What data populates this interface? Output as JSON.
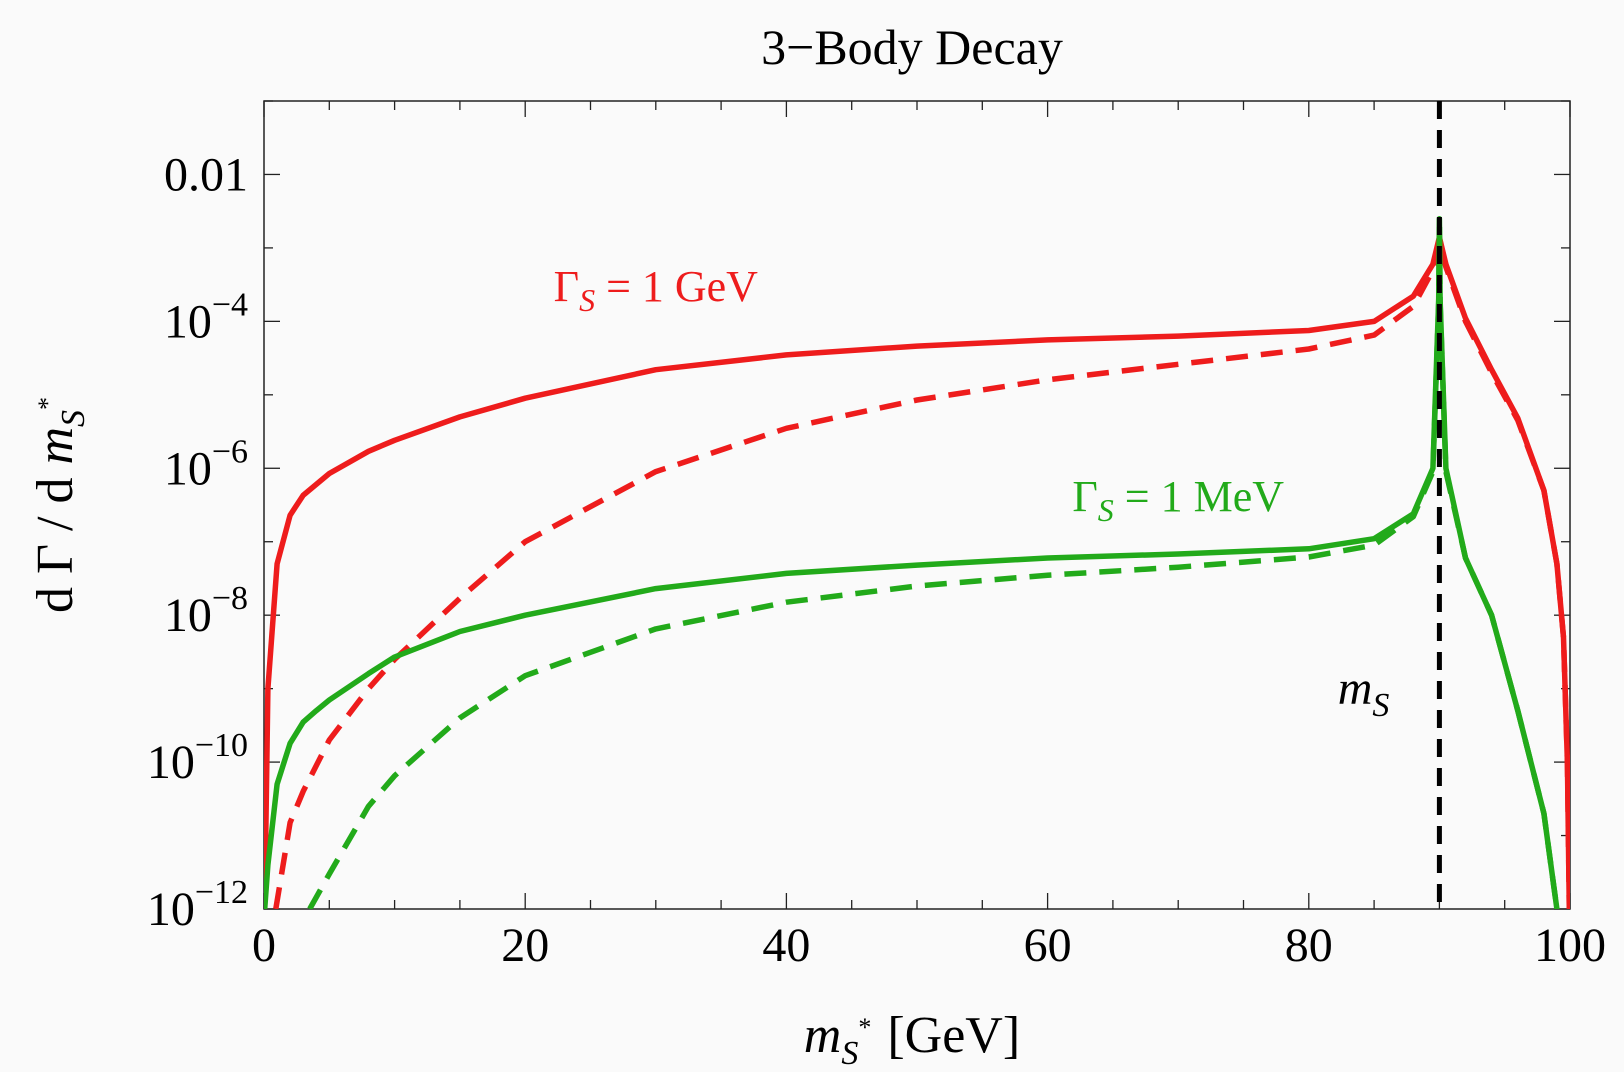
{
  "chart_data": {
    "type": "line",
    "title": "3−Body Decay",
    "xlabel": {
      "var": "m",
      "sub": "S",
      "sup": "*",
      "unit": "[GeV]"
    },
    "ylabel": {
      "pre": "d Γ / d ",
      "var": "m",
      "sub": "S",
      "sup": "*"
    },
    "x_range": [
      0,
      100
    ],
    "y_scale": "log",
    "y_range": [
      1e-12,
      0.1
    ],
    "x_ticks": [
      0,
      20,
      40,
      60,
      80,
      100
    ],
    "x_tick_labels": [
      "0",
      "20",
      "40",
      "60",
      "80",
      "100"
    ],
    "y_ticks": [
      {
        "value": 0.01,
        "base": "0.01",
        "exp": ""
      },
      {
        "value": 0.0001,
        "base": "10",
        "exp": "−4"
      },
      {
        "value": 1e-06,
        "base": "10",
        "exp": "−6"
      },
      {
        "value": 1e-08,
        "base": "10",
        "exp": "−8"
      },
      {
        "value": 1e-10,
        "base": "10",
        "exp": "−10"
      },
      {
        "value": 1e-12,
        "base": "10",
        "exp": "−12"
      }
    ],
    "grid": false,
    "vertical_line": {
      "x": 90,
      "label": {
        "var": "m",
        "sub": "S"
      },
      "style": "dashed",
      "color": "#000000"
    },
    "annotations": [
      {
        "text_pre": "Γ",
        "sub": "S",
        "text_post": " = 1 GeV",
        "color": "#ee1c1c",
        "at": [
          30,
          0.00019
        ]
      },
      {
        "text_pre": "Γ",
        "sub": "S",
        "text_post": " = 1 MeV",
        "color": "#22aa1a",
        "at": [
          70,
          2.6e-07
        ]
      }
    ],
    "series": [
      {
        "group": "ΓS = 1 GeV",
        "style": "solid",
        "color": "#ee1c1c",
        "x": [
          0.05,
          0.3,
          1,
          2,
          3,
          5,
          8,
          10,
          15,
          20,
          30,
          40,
          50,
          60,
          70,
          80,
          85,
          88,
          89.5,
          90,
          90.5,
          92,
          94,
          96,
          98,
          99,
          99.5,
          99.8,
          99.95
        ],
        "y": [
          1e-12,
          1e-09,
          5e-08,
          2.3e-07,
          4.3e-07,
          8.5e-07,
          1.7e-06,
          2.4e-06,
          5e-06,
          9e-06,
          2.2e-05,
          3.5e-05,
          4.6e-05,
          5.6e-05,
          6.3e-05,
          7.5e-05,
          0.0001,
          0.00022,
          0.0006,
          0.0014,
          0.0006,
          0.00011,
          2.2e-05,
          4.8e-06,
          5e-07,
          5e-08,
          5e-09,
          1e-10,
          1e-12
        ]
      },
      {
        "group": "ΓS = 1 GeV",
        "style": "dashed",
        "color": "#ee1c1c",
        "x": [
          0.9,
          2,
          3,
          5,
          8,
          10,
          15,
          20,
          30,
          40,
          50,
          60,
          70,
          80,
          85,
          88,
          89.5,
          90,
          90.5,
          92,
          94,
          96,
          98,
          99,
          99.5,
          99.8,
          99.95
        ],
        "y": [
          1e-12,
          1.5e-11,
          4e-11,
          2e-10,
          1e-09,
          2.5e-09,
          1.7e-08,
          1e-07,
          9e-07,
          3.5e-06,
          8.5e-06,
          1.6e-05,
          2.6e-05,
          4.2e-05,
          6.5e-05,
          0.00016,
          0.0005,
          0.0012,
          0.00055,
          0.0001,
          2e-05,
          4.5e-06,
          5e-07,
          5e-08,
          5e-09,
          1e-10,
          1e-12
        ]
      },
      {
        "group": "ΓS = 1 MeV",
        "style": "solid",
        "color": "#22aa1a",
        "x": [
          0.05,
          0.3,
          1,
          2,
          3,
          4,
          5,
          8,
          10,
          15,
          20,
          30,
          40,
          50,
          60,
          70,
          80,
          85,
          88,
          89.5,
          89.95,
          90,
          90.05,
          90.5,
          92,
          94,
          96,
          98,
          99,
          99.4
        ],
        "y": [
          1e-12,
          4e-12,
          5e-11,
          1.8e-10,
          3.5e-10,
          5e-10,
          7e-10,
          1.6e-09,
          2.7e-09,
          6e-09,
          1e-08,
          2.3e-08,
          3.7e-08,
          4.8e-08,
          6e-08,
          6.8e-08,
          8e-08,
          1.1e-07,
          2.4e-07,
          1e-06,
          0.0002,
          0.0025,
          0.0002,
          1e-06,
          6e-08,
          1e-08,
          5e-10,
          2e-11,
          1e-12,
          1e-13
        ]
      },
      {
        "group": "ΓS = 1 MeV",
        "style": "dashed",
        "color": "#22aa1a",
        "x": [
          3.5,
          5,
          8,
          10,
          15,
          20,
          30,
          40,
          50,
          60,
          70,
          80,
          85,
          88,
          89.5,
          89.95,
          90,
          90.05,
          90.5,
          92,
          94,
          96,
          98,
          99,
          99.4
        ],
        "y": [
          1e-12,
          3e-12,
          2.5e-11,
          6.5e-11,
          4e-10,
          1.5e-09,
          6.5e-09,
          1.5e-08,
          2.5e-08,
          3.5e-08,
          4.5e-08,
          6.2e-08,
          9e-08,
          2.2e-07,
          9e-07,
          0.00018,
          0.0023,
          0.00018,
          9e-07,
          6e-08,
          1e-08,
          5e-10,
          2e-11,
          1e-12,
          1e-13
        ]
      }
    ]
  }
}
